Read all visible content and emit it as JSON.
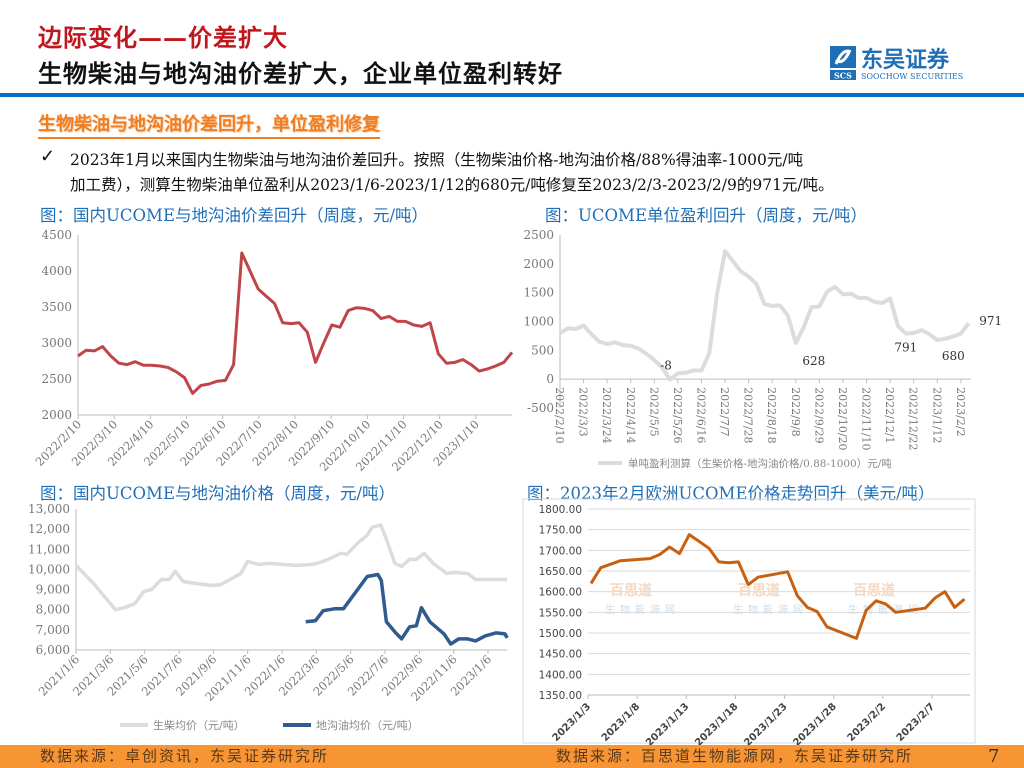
{
  "header": {
    "title_red": "边际变化——价差扩大",
    "title_main": "生物柴油与地沟油价差扩大，企业单位盈利转好",
    "logo_text": "东吴证券",
    "logo_sub": "SOOCHOW SECURITIES",
    "logo_mark": "SCS"
  },
  "section": {
    "subheading": "生物柴油与地沟油价差回升，单位盈利修复",
    "check_icon": "✓",
    "bullet_line1": "2023年1月以来国内生物柴油与地沟油价差回升。按照（生物柴油价格-地沟油价格/88%得油率-1000元/吨",
    "bullet_line2": "加工费），测算生物柴油单位盈利从2023/1/6-2023/1/12的680元/吨修复至2023/2/3-2023/2/9的971元/吨。"
  },
  "colors": {
    "accent_blue": "#0070c0",
    "title_red": "#c0161e",
    "orange": "#f79433",
    "spread_line": "#c0454a",
    "biodiesel": "#dcdcdc",
    "gutter_oil": "#2f5b8e",
    "europe": "#c8600f"
  },
  "chart_data": [
    {
      "type": "line",
      "title": "图：国内UCOME与地沟油价差回升（周度，元/吨）",
      "ylim": [
        2000,
        4500
      ],
      "y_ticks": [
        "2000",
        "2500",
        "3000",
        "3500",
        "4000",
        "4500"
      ],
      "x_ticks": [
        "2022/2/10",
        "2022/3/10",
        "2022/4/10",
        "2022/5/10",
        "2022/6/10",
        "2022/7/10",
        "2022/8/10",
        "2022/9/10",
        "2022/10/10",
        "2022/11/10",
        "2022/12/10",
        "2023/1/10"
      ],
      "series": [
        {
          "values": [
            2820,
            2900,
            2890,
            2950,
            2820,
            2720,
            2700,
            2740,
            2690,
            2690,
            2680,
            2660,
            2600,
            2520,
            2300,
            2410,
            2430,
            2470,
            2480,
            2700,
            4250,
            4000,
            3750,
            3650,
            3550,
            3280,
            3270,
            3280,
            3150,
            2730,
            3000,
            3250,
            3220,
            3450,
            3490,
            3480,
            3450,
            3340,
            3370,
            3300,
            3300,
            3250,
            3230,
            3280,
            2850,
            2720,
            2730,
            2770,
            2700,
            2610,
            2640,
            2680,
            2730,
            2870
          ]
        }
      ]
    },
    {
      "type": "line",
      "title": "图：UCOME单位盈利回升（周度，元/吨）",
      "ylim": [
        -500,
        2500
      ],
      "y_ticks": [
        "-500",
        "0",
        "500",
        "1000",
        "1500",
        "2000",
        "2500"
      ],
      "x_ticks": [
        "2022/2/10",
        "2022/3/3",
        "2022/3/24",
        "2022/4/14",
        "2022/5/5",
        "2022/5/26",
        "2022/6/16",
        "2022/7/7",
        "2022/7/28",
        "2022/8/18",
        "2022/9/8",
        "2022/9/29",
        "2022/10/20",
        "2022/11/10",
        "2022/12/1",
        "2022/12/22",
        "2023/1/12",
        "2023/2/2"
      ],
      "series": [
        {
          "name": "单吨盈利测算（生柴价格-地沟油价格/0.88-1000）元/吨",
          "values": [
            800,
            880,
            870,
            930,
            780,
            650,
            610,
            640,
            590,
            580,
            530,
            440,
            330,
            200,
            -8,
            100,
            110,
            150,
            150,
            450,
            1500,
            2220,
            2050,
            1870,
            1780,
            1650,
            1300,
            1270,
            1280,
            1100,
            628,
            900,
            1250,
            1260,
            1520,
            1600,
            1470,
            1480,
            1410,
            1410,
            1340,
            1320,
            1400,
            920,
            791,
            800,
            850,
            780,
            680,
            700,
            740,
            790,
            971
          ]
        }
      ],
      "data_labels": [
        {
          "index": 14,
          "text": "-8"
        },
        {
          "index": 30,
          "text": "628"
        },
        {
          "index": 44,
          "text": "791"
        },
        {
          "index": 48,
          "text": "680"
        },
        {
          "index": 52,
          "text": "971"
        }
      ]
    },
    {
      "type": "line",
      "title": "图：国内UCOME与地沟油价格（周度，元/吨）",
      "ylim": [
        6000,
        13000
      ],
      "y_ticks": [
        "6,000",
        "7,000",
        "8,000",
        "9,000",
        "10,000",
        "11,000",
        "12,000",
        "13,000"
      ],
      "x_ticks": [
        "2021/1/6",
        "2021/3/6",
        "2021/5/6",
        "2021/7/6",
        "2021/9/6",
        "2021/11/6",
        "2022/1/6",
        "2022/3/6",
        "2022/5/6",
        "2022/7/6",
        "2022/9/6",
        "2022/11/6",
        "2023/1/6"
      ],
      "series": [
        {
          "name": "生柴均价（元/吨）",
          "points": [
            [
              "2021-01-06",
              10200
            ],
            [
              "2021-02-06",
              9300
            ],
            [
              "2021-03-17",
              8000
            ],
            [
              "2021-04-01",
              8100
            ],
            [
              "2021-04-20",
              8300
            ],
            [
              "2021-05-06",
              8900
            ],
            [
              "2021-05-20",
              9000
            ],
            [
              "2021-06-06",
              9500
            ],
            [
              "2021-06-20",
              9500
            ],
            [
              "2021-07-01",
              9900
            ],
            [
              "2021-07-15",
              9400
            ],
            [
              "2021-08-06",
              9300
            ],
            [
              "2021-09-06",
              9200
            ],
            [
              "2021-09-20",
              9250
            ],
            [
              "2021-10-06",
              9500
            ],
            [
              "2021-10-25",
              9800
            ],
            [
              "2021-11-06",
              10400
            ],
            [
              "2021-11-25",
              10250
            ],
            [
              "2021-12-15",
              10300
            ],
            [
              "2022-01-06",
              10250
            ],
            [
              "2022-02-01",
              10200
            ],
            [
              "2022-03-01",
              10250
            ],
            [
              "2022-03-20",
              10400
            ],
            [
              "2022-04-06",
              10600
            ],
            [
              "2022-04-20",
              10800
            ],
            [
              "2022-05-01",
              10750
            ],
            [
              "2022-05-20",
              11300
            ],
            [
              "2022-06-06",
              11700
            ],
            [
              "2022-06-15",
              12100
            ],
            [
              "2022-06-30",
              12200
            ],
            [
              "2022-07-10",
              11500
            ],
            [
              "2022-07-25",
              10300
            ],
            [
              "2022-08-06",
              10150
            ],
            [
              "2022-08-20",
              10500
            ],
            [
              "2022-09-01",
              10500
            ],
            [
              "2022-09-15",
              10800
            ],
            [
              "2022-10-01",
              10300
            ],
            [
              "2022-10-25",
              9800
            ],
            [
              "2022-11-06",
              9850
            ],
            [
              "2022-12-01",
              9800
            ],
            [
              "2022-12-15",
              9500
            ],
            [
              "2023-01-06",
              9500
            ],
            [
              "2023-02-09",
              9500
            ]
          ]
        },
        {
          "name": "地沟油均价（元/吨）",
          "points": [
            [
              "2022-02-17",
              7400
            ],
            [
              "2022-03-06",
              7450
            ],
            [
              "2022-03-20",
              7950
            ],
            [
              "2022-04-10",
              8050
            ],
            [
              "2022-04-25",
              8050
            ],
            [
              "2022-05-20",
              9000
            ],
            [
              "2022-06-06",
              9650
            ],
            [
              "2022-06-25",
              9750
            ],
            [
              "2022-07-01",
              9450
            ],
            [
              "2022-07-10",
              7400
            ],
            [
              "2022-07-25",
              6900
            ],
            [
              "2022-08-06",
              6550
            ],
            [
              "2022-08-20",
              7150
            ],
            [
              "2022-09-01",
              7200
            ],
            [
              "2022-09-10",
              8100
            ],
            [
              "2022-09-25",
              7400
            ],
            [
              "2022-10-20",
              6800
            ],
            [
              "2022-11-01",
              6300
            ],
            [
              "2022-11-15",
              6550
            ],
            [
              "2022-12-01",
              6550
            ],
            [
              "2022-12-15",
              6450
            ],
            [
              "2023-01-01",
              6700
            ],
            [
              "2023-01-20",
              6850
            ],
            [
              "2023-02-05",
              6800
            ],
            [
              "2023-02-09",
              6600
            ]
          ]
        }
      ],
      "legend": "bottom"
    },
    {
      "type": "line",
      "title": "图：2023年2月欧洲UCOME价格走势回升（美元/吨）",
      "ylim": [
        1350,
        1800
      ],
      "y_ticks": [
        "1350.00",
        "1400.00",
        "1450.00",
        "1500.00",
        "1550.00",
        "1600.00",
        "1650.00",
        "1700.00",
        "1750.00",
        "1800.00"
      ],
      "x_ticks": [
        "2023/1/3",
        "2023/1/8",
        "2023/1/13",
        "2023/1/18",
        "2023/1/23",
        "2023/1/28",
        "2023/2/2",
        "2023/2/7"
      ],
      "grid": true,
      "watermark": [
        "百思道",
        "生物能源网"
      ],
      "series": [
        {
          "points": [
            [
              "2023-01-03",
              1620
            ],
            [
              "2023-01-04",
              1658
            ],
            [
              "2023-01-06",
              1675
            ],
            [
              "2023-01-09",
              1680
            ],
            [
              "2023-01-10",
              1690
            ],
            [
              "2023-01-11",
              1708
            ],
            [
              "2023-01-12",
              1692
            ],
            [
              "2023-01-13",
              1738
            ],
            [
              "2023-01-15",
              1705
            ],
            [
              "2023-01-16",
              1672
            ],
            [
              "2023-01-17",
              1670
            ],
            [
              "2023-01-18",
              1672
            ],
            [
              "2023-01-19",
              1617
            ],
            [
              "2023-01-20",
              1635
            ],
            [
              "2023-01-23",
              1648
            ],
            [
              "2023-01-24",
              1590
            ],
            [
              "2023-01-25",
              1562
            ],
            [
              "2023-01-26",
              1552
            ],
            [
              "2023-01-27",
              1515
            ],
            [
              "2023-01-30",
              1487
            ],
            [
              "2023-01-31",
              1555
            ],
            [
              "2023-02-01",
              1578
            ],
            [
              "2023-02-02",
              1570
            ],
            [
              "2023-02-03",
              1550
            ],
            [
              "2023-02-06",
              1560
            ],
            [
              "2023-02-07",
              1585
            ],
            [
              "2023-02-08",
              1600
            ],
            [
              "2023-02-09",
              1562
            ],
            [
              "2023-02-10",
              1582
            ]
          ]
        }
      ]
    }
  ],
  "footer": {
    "source_left": "数据来源：卓创资讯，东吴证券研究所",
    "source_right": "数据来源：百思道生物能源网，东吴证券研究所",
    "page_number": "7"
  }
}
